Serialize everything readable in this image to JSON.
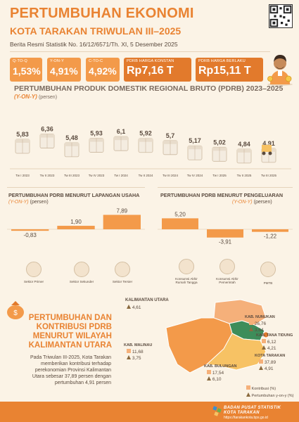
{
  "header": {
    "title": "PERTUMBUHAN EKONOMI",
    "subtitle": "KOTA TARAKAN TRIWULAN III–2025",
    "brs": "Berita Resmi Statistik No. 16/12/6571/Th. XI, 5 Desember 2025"
  },
  "indicators": [
    {
      "label": "Q-TO-Q",
      "value": "1,53%"
    },
    {
      "label": "Y-ON-Y",
      "value": "4,91%"
    },
    {
      "label": "C-TO-C",
      "value": "4,92%"
    },
    {
      "label": "PDRB HARGA KONSTAN",
      "value": "Rp7,16 T"
    },
    {
      "label": "PDRB HARGA BERLAKU",
      "value": "Rp15,11 T"
    }
  ],
  "pdrb_section": {
    "title": "PERTUMBUHAN PRODUK DOMESTIK REGIONAL BRUTO (PDRB) 2023–2025",
    "subtitle": "(Y-ON-Y)",
    "unit": "(persen)"
  },
  "chart_data": [
    {
      "type": "bar",
      "categories": [
        "Tw I 2023",
        "Tw II 2023",
        "Tw III 2023",
        "Tw IV 2023",
        "Tw I 2024",
        "Tw II 2024",
        "Tw III 2024",
        "Tw IV 2024",
        "Tw I 2025",
        "Tw II 2025",
        "Tw III 2025"
      ],
      "values": [
        5.83,
        6.36,
        5.48,
        5.93,
        6.1,
        5.92,
        5.7,
        5.17,
        5.02,
        4.84,
        4.91
      ],
      "value_labels": [
        "5,83",
        "6,36",
        "5,48",
        "5,93",
        "6,1",
        "5,92",
        "5,7",
        "5,17",
        "5,02",
        "4,84",
        "4,91"
      ]
    },
    {
      "type": "bar",
      "title": "PERTUMBUHAN PDRB MENURUT LAPANGAN USAHA",
      "categories": [
        "Sektor Primer",
        "Sektor Sekunder",
        "Sektor Tersier"
      ],
      "values": [
        -0.83,
        1.9,
        7.89
      ],
      "value_labels": [
        "-0,83",
        "1,90",
        "7,89"
      ]
    },
    {
      "type": "bar",
      "title": "PERTUMBUHAN PDRB MENURUT PENGELUARAN",
      "categories": [
        "Konsumsi Akhir Rumah Tangga",
        "Konsumsi Akhir Pemerintah",
        "PMTB"
      ],
      "values": [
        5.2,
        -3.91,
        -1.22
      ],
      "value_labels": [
        "5,20",
        "-3,91",
        "-1,22"
      ]
    }
  ],
  "lapangan": {
    "title": "PERTUMBUHAN PDRB MENURUT LAPANGAN USAHA",
    "subtitle": "(Y-ON-Y)",
    "unit": "(persen)",
    "cats": [
      "Sektor Primer",
      "Sektor Sekunder",
      "Sektor Tersier"
    ]
  },
  "pengeluaran": {
    "title": "PERTUMBUHAN PDRB MENURUT PENGELUARAN",
    "subtitle": "(Y-ON-Y)",
    "unit": "(persen)",
    "cats": [
      "Konsumsi Akhir Rumah Tangga",
      "Konsumsi Akhir Pemerintah",
      "PMTB"
    ]
  },
  "region": {
    "title": "PERTUMBUHAN DAN KONTRIBUSI PDRB MENURUT WILAYAH KALIMANTAN UTARA",
    "text": "Pada Triwulan III-2025, Kota Tarakan memberikan kontribusi terhadap perekonomian Provinsi Kalimantan Utara sebesar 37,89 persen dengan pertumbuhan 4,91 persen",
    "areas": [
      {
        "name": "KALIMANTAN UTARA",
        "contrib": "",
        "growth": "4,61"
      },
      {
        "name": "KAB. NUNUKAN",
        "contrib": "26,76",
        "growth": "3,64"
      },
      {
        "name": "KAB. TANA TIDUNG",
        "contrib": "6,12",
        "growth": "4,21"
      },
      {
        "name": "KOTA TARAKAN",
        "contrib": "37,89",
        "growth": "4,91"
      },
      {
        "name": "KAB. MALINAU",
        "contrib": "11,68",
        "growth": "3,75"
      },
      {
        "name": "KAB. BULUNGAN",
        "contrib": "17,54",
        "growth": "6,10"
      }
    ],
    "legend_contrib": "Kontribusi (%)",
    "legend_growth": "Pertumbuhan y-on-y (%)"
  },
  "footer": {
    "line1": "BADAN PUSAT STATISTIK",
    "line2": "KOTA TARAKAN",
    "url": "https://tarakankota.bps.go.id"
  },
  "colors": {
    "accent": "#e98332",
    "bar": "#f39a4a",
    "bg": "#fbf3e6"
  }
}
